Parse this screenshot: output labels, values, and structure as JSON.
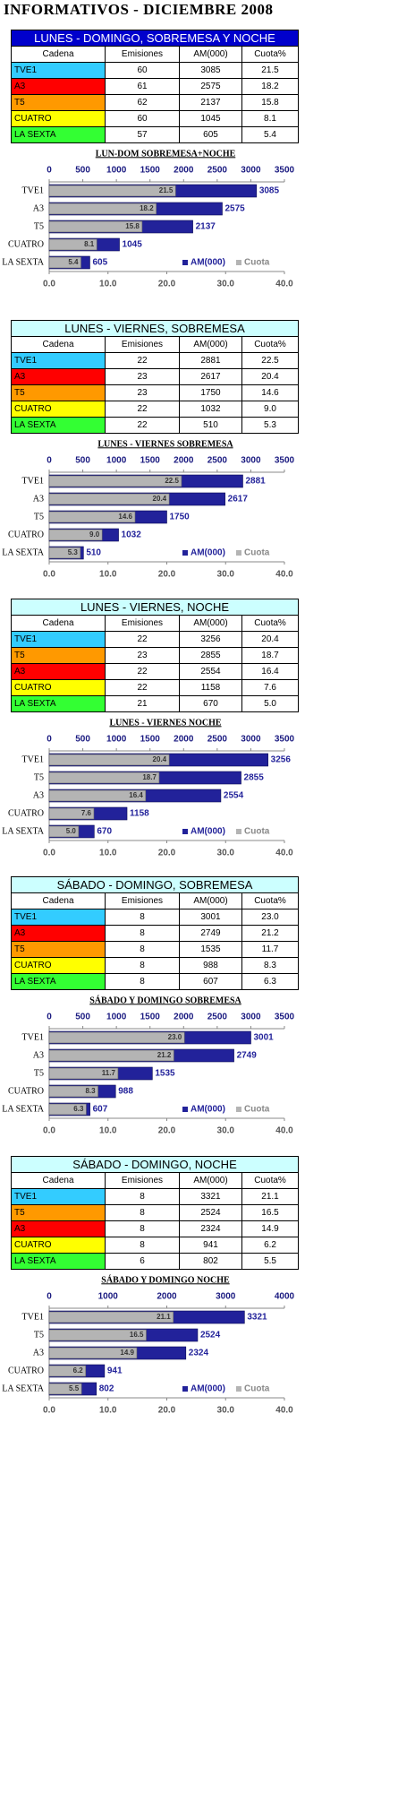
{
  "title": "INFORMATIVOS - DICIEMBRE 2008",
  "tables": [
    {
      "title": "LUNES - DOMINGO, SOBREMESA Y NOCHE",
      "title_background": "#0000cc",
      "title_color": "#ffffff",
      "header": [
        "Cadena",
        "Emisiones",
        "AM(000)",
        "Cuota%"
      ],
      "rows": [
        [
          "TVE1",
          "60",
          "3085",
          "21.5"
        ],
        [
          "A3",
          "61",
          "2575",
          "18.2"
        ],
        [
          "T5",
          "62",
          "2137",
          "15.8"
        ],
        [
          "CUATRO",
          "60",
          "1045",
          "8.1"
        ],
        [
          "LA SEXTA",
          "57",
          "605",
          "5.4"
        ]
      ],
      "row_colors": [
        "#33ccff",
        "#ff0000",
        "#ff9900",
        "#ffff00",
        "#33ff33"
      ]
    },
    {
      "title": "LUNES - VIERNES, SOBREMESA",
      "title_background": "#ccffff",
      "title_color": "#000000",
      "header": [
        "Cadena",
        "Emisiones",
        "AM(000)",
        "Cuota%"
      ],
      "rows": [
        [
          "TVE1",
          "22",
          "2881",
          "22.5"
        ],
        [
          "A3",
          "23",
          "2617",
          "20.4"
        ],
        [
          "T5",
          "23",
          "1750",
          "14.6"
        ],
        [
          "CUATRO",
          "22",
          "1032",
          "9.0"
        ],
        [
          "LA SEXTA",
          "22",
          "510",
          "5.3"
        ]
      ],
      "row_colors": [
        "#33ccff",
        "#ff0000",
        "#ff9900",
        "#ffff00",
        "#33ff33"
      ]
    },
    {
      "title": "LUNES - VIERNES, NOCHE",
      "title_background": "#ccffff",
      "title_color": "#000000",
      "header": [
        "Cadena",
        "Emisiones",
        "AM(000)",
        "Cuota%"
      ],
      "rows": [
        [
          "TVE1",
          "22",
          "3256",
          "20.4"
        ],
        [
          "T5",
          "23",
          "2855",
          "18.7"
        ],
        [
          "A3",
          "22",
          "2554",
          "16.4"
        ],
        [
          "CUATRO",
          "22",
          "1158",
          "7.6"
        ],
        [
          "LA SEXTA",
          "21",
          "670",
          "5.0"
        ]
      ],
      "row_colors": [
        "#33ccff",
        "#ff9900",
        "#ff0000",
        "#ffff00",
        "#33ff33"
      ]
    },
    {
      "title": "SÁBADO - DOMINGO, SOBREMESA",
      "title_background": "#ccffff",
      "title_color": "#000000",
      "header": [
        "Cadena",
        "Emisiones",
        "AM(000)",
        "Cuota%"
      ],
      "rows": [
        [
          "TVE1",
          "8",
          "3001",
          "23.0"
        ],
        [
          "A3",
          "8",
          "2749",
          "21.2"
        ],
        [
          "T5",
          "8",
          "1535",
          "11.7"
        ],
        [
          "CUATRO",
          "8",
          "988",
          "8.3"
        ],
        [
          "LA SEXTA",
          "8",
          "607",
          "6.3"
        ]
      ],
      "row_colors": [
        "#33ccff",
        "#ff0000",
        "#ff9900",
        "#ffff00",
        "#33ff33"
      ]
    },
    {
      "title": "SÁBADO - DOMINGO, NOCHE",
      "title_background": "#ccffff",
      "title_color": "#000000",
      "header": [
        "Cadena",
        "Emisiones",
        "AM(000)",
        "Cuota%"
      ],
      "rows": [
        [
          "TVE1",
          "8",
          "3321",
          "21.1"
        ],
        [
          "T5",
          "8",
          "2524",
          "16.5"
        ],
        [
          "A3",
          "8",
          "2324",
          "14.9"
        ],
        [
          "CUATRO",
          "8",
          "941",
          "6.2"
        ],
        [
          "LA SEXTA",
          "6",
          "802",
          "5.5"
        ]
      ],
      "row_colors": [
        "#33ccff",
        "#ff9900",
        "#ff0000",
        "#ffff00",
        "#33ff33"
      ]
    }
  ],
  "chart_data": [
    {
      "type": "bar",
      "orientation": "horizontal",
      "title": "LUN-DOM SOBREMESA+NOCHE",
      "categories": [
        "TVE1",
        "A3",
        "T5",
        "CUATRO",
        "LA SEXTA"
      ],
      "series": [
        {
          "name": "AM(000)",
          "color": "#22229a",
          "axis": "x2",
          "values": [
            3085,
            2575,
            2137,
            1045,
            605
          ]
        },
        {
          "name": "Cuota",
          "color": "#b4b4b4",
          "values": [
            21.5,
            18.2,
            15.8,
            8.1,
            5.4
          ],
          "value_labels": [
            "21.5",
            "18.2",
            "15.8",
            "8.1",
            "5.4"
          ]
        }
      ],
      "xlim": [
        0,
        40
      ],
      "xticks": [
        {
          "value": 0,
          "label": "0.0"
        },
        {
          "value": 10,
          "label": "10.0"
        },
        {
          "value": 20,
          "label": "20.0"
        },
        {
          "value": 30,
          "label": "30.0"
        },
        {
          "value": 40,
          "label": "40.0"
        }
      ],
      "x2lim": [
        0,
        3500
      ],
      "x2ticks": [
        0,
        500,
        1000,
        1500,
        2000,
        2500,
        3000,
        3500
      ]
    },
    {
      "type": "bar",
      "orientation": "horizontal",
      "title": "LUNES - VIERNES SOBREMESA",
      "categories": [
        "TVE1",
        "A3",
        "T5",
        "CUATRO",
        "LA SEXTA"
      ],
      "series": [
        {
          "name": "AM(000)",
          "color": "#22229a",
          "axis": "x2",
          "values": [
            2881,
            2617,
            1750,
            1032,
            510
          ]
        },
        {
          "name": "Cuota",
          "color": "#b4b4b4",
          "values": [
            22.5,
            20.4,
            14.6,
            9.0,
            5.3
          ],
          "value_labels": [
            "22.5",
            "20.4",
            "14.6",
            "9.0",
            "5.3"
          ]
        }
      ],
      "xlim": [
        0,
        40
      ],
      "xticks": [
        {
          "value": 0,
          "label": "0.0"
        },
        {
          "value": 10,
          "label": "10.0"
        },
        {
          "value": 20,
          "label": "20.0"
        },
        {
          "value": 30,
          "label": "30.0"
        },
        {
          "value": 40,
          "label": "40.0"
        }
      ],
      "x2lim": [
        0,
        3500
      ],
      "x2ticks": [
        0,
        500,
        1000,
        1500,
        2000,
        2500,
        3000,
        3500
      ]
    },
    {
      "type": "bar",
      "orientation": "horizontal",
      "title": "LUNES - VIERNES  NOCHE",
      "categories": [
        "TVE1",
        "T5",
        "A3",
        "CUATRO",
        "LA SEXTA"
      ],
      "series": [
        {
          "name": "AM(000)",
          "color": "#22229a",
          "axis": "x2",
          "values": [
            3256,
            2855,
            2554,
            1158,
            670
          ]
        },
        {
          "name": "Cuota",
          "color": "#b4b4b4",
          "values": [
            20.4,
            18.7,
            16.4,
            7.6,
            5.0
          ],
          "value_labels": [
            "20.4",
            "18.7",
            "16.4",
            "7.6",
            "5.0"
          ]
        }
      ],
      "xlim": [
        0,
        40
      ],
      "xticks": [
        {
          "value": 0,
          "label": "0.0"
        },
        {
          "value": 10,
          "label": "10.0"
        },
        {
          "value": 20,
          "label": "20.0"
        },
        {
          "value": 30,
          "label": "30.0"
        },
        {
          "value": 40,
          "label": "40.0"
        }
      ],
      "x2lim": [
        0,
        3500
      ],
      "x2ticks": [
        0,
        500,
        1000,
        1500,
        2000,
        2500,
        3000,
        3500
      ]
    },
    {
      "type": "bar",
      "orientation": "horizontal",
      "title": "SÁBADO Y DOMINGO SOBREMESA",
      "categories": [
        "TVE1",
        "A3",
        "T5",
        "CUATRO",
        "LA SEXTA"
      ],
      "series": [
        {
          "name": "AM(000)",
          "color": "#22229a",
          "axis": "x2",
          "values": [
            3001,
            2749,
            1535,
            988,
            607
          ]
        },
        {
          "name": "Cuota",
          "color": "#b4b4b4",
          "values": [
            23.0,
            21.2,
            11.7,
            8.3,
            6.3
          ],
          "value_labels": [
            "23.0",
            "21.2",
            "11.7",
            "8.3",
            "6.3"
          ]
        }
      ],
      "xlim": [
        0,
        40
      ],
      "xticks": [
        {
          "value": 0,
          "label": "0.0"
        },
        {
          "value": 10,
          "label": "10.0"
        },
        {
          "value": 20,
          "label": "20.0"
        },
        {
          "value": 30,
          "label": "30.0"
        },
        {
          "value": 40,
          "label": "40.0"
        }
      ],
      "x2lim": [
        0,
        3500
      ],
      "x2ticks": [
        0,
        500,
        1000,
        1500,
        2000,
        2500,
        3000,
        3500
      ]
    },
    {
      "type": "bar",
      "orientation": "horizontal",
      "title": "SÁBADO Y DOMINGO  NOCHE",
      "categories": [
        "TVE1",
        "T5",
        "A3",
        "CUATRO",
        "LA SEXTA"
      ],
      "series": [
        {
          "name": "AM(000)",
          "color": "#22229a",
          "axis": "x2",
          "values": [
            3321,
            2524,
            2324,
            941,
            802
          ]
        },
        {
          "name": "Cuota",
          "color": "#b4b4b4",
          "values": [
            21.1,
            16.5,
            14.9,
            6.2,
            5.5
          ],
          "value_labels": [
            "21.1",
            "16.5",
            "14.9",
            "6.2",
            "5.5"
          ]
        }
      ],
      "xlim": [
        0,
        40
      ],
      "xticks": [
        {
          "value": 0,
          "label": "0.0"
        },
        {
          "value": 10,
          "label": "10.0"
        },
        {
          "value": 20,
          "label": "20.0"
        },
        {
          "value": 30,
          "label": "30.0"
        },
        {
          "value": 40,
          "label": "40.0"
        }
      ],
      "x2lim": [
        0,
        4000
      ],
      "x2ticks": [
        0,
        1000,
        2000,
        3000,
        4000
      ]
    }
  ]
}
